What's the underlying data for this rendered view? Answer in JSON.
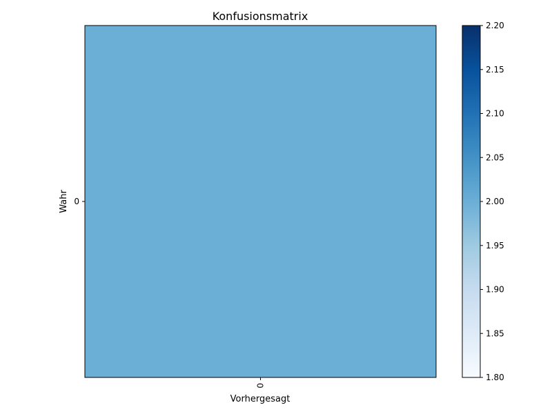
{
  "chart_data": {
    "type": "heatmap",
    "title": "Konfusionsmatrix",
    "xlabel": "Vorhergesagt",
    "ylabel": "Wahr",
    "x_ticks": [
      "0"
    ],
    "y_ticks": [
      "0"
    ],
    "values": [
      [
        2
      ]
    ],
    "colorbar": {
      "colormap": "Blues",
      "range": [
        1.8,
        2.2
      ],
      "ticks": [
        "1.80",
        "1.85",
        "1.90",
        "1.95",
        "2.00",
        "2.05",
        "2.10",
        "2.15",
        "2.20"
      ]
    },
    "grid": false,
    "cell_labels": false
  }
}
